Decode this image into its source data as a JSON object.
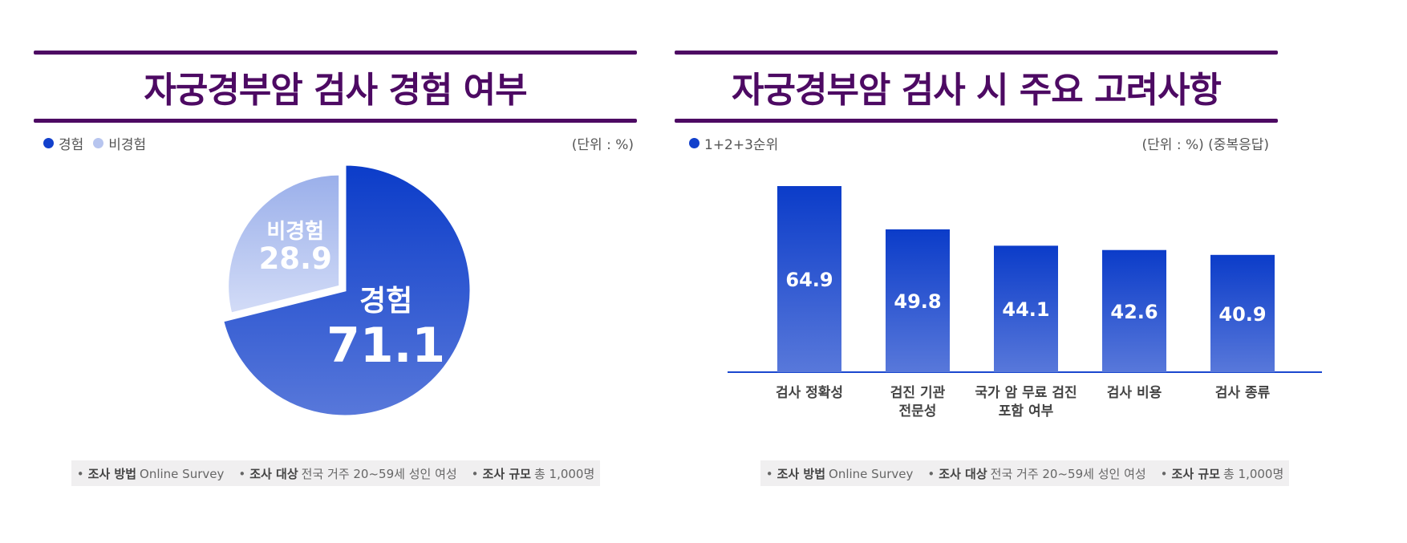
{
  "left": {
    "title": "자궁경부암 검사 경험 여부",
    "legend": [
      {
        "label": "경험",
        "color": "#1240cc"
      },
      {
        "label": "비경험",
        "color": "#b7c5ef"
      }
    ],
    "unit": "(단위 : %)",
    "footer": [
      {
        "key": "조사 방법",
        "value": "Online Survey"
      },
      {
        "key": "조사 대상",
        "value": "전국 거주 20~59세 성인 여성"
      },
      {
        "key": "조사 규모",
        "value": "총 1,000명"
      }
    ]
  },
  "right": {
    "title": "자궁경부암 검사 시 주요 고려사항",
    "legend": [
      {
        "label": "1+2+3순위",
        "color": "#1240cc"
      }
    ],
    "unit": "(단위 : %) (중복응답)",
    "footer": [
      {
        "key": "조사 방법",
        "value": "Online Survey"
      },
      {
        "key": "조사 대상",
        "value": "전국 거주 20~59세 성인 여성"
      },
      {
        "key": "조사 규모",
        "value": "총 1,000명"
      }
    ]
  },
  "chart_data": [
    {
      "type": "pie",
      "title": "자궁경부암 검사 경험 여부",
      "categories": [
        "경험",
        "비경험"
      ],
      "values": [
        71.1,
        28.9
      ],
      "colors": [
        "#1240cc",
        "#b7c5ef"
      ],
      "legend": "top-left"
    },
    {
      "type": "bar",
      "title": "자궁경부암 검사 시 주요 고려사항",
      "categories": [
        "검사 정확성",
        "검진 기관\n전문성",
        "국가 암 무료 검진\n포함 여부",
        "검사 비용",
        "검사 종류"
      ],
      "series": [
        {
          "name": "1+2+3순위",
          "values": [
            64.9,
            49.8,
            44.1,
            42.6,
            40.9
          ]
        }
      ],
      "ylim": [
        0,
        70
      ],
      "grid": false,
      "legend": "top-left"
    }
  ]
}
